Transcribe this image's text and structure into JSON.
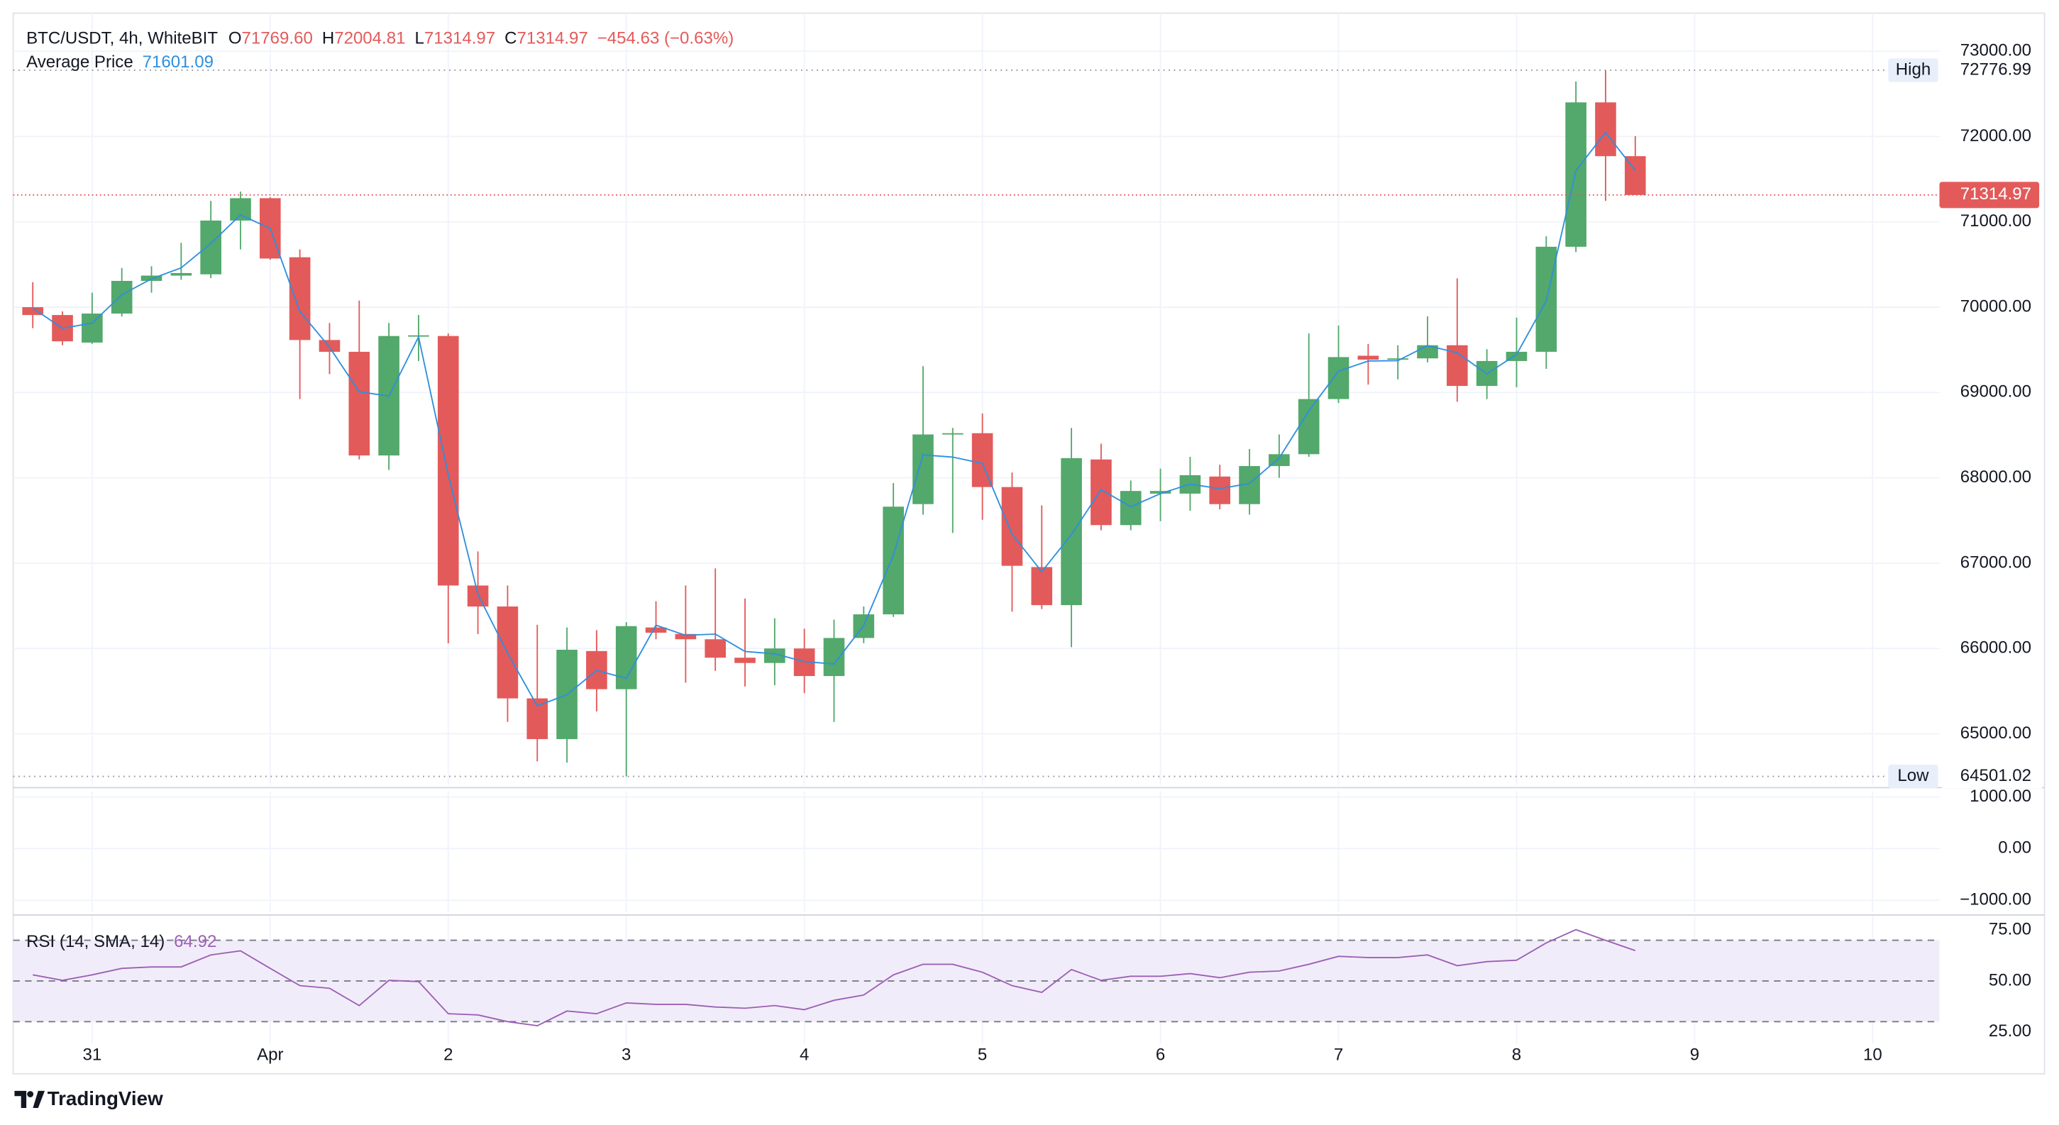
{
  "header": {
    "symbol": "BTC/USDT, 4h, WhiteBIT",
    "ohlc": [
      {
        "key": "O",
        "value": "71769.60"
      },
      {
        "key": "H",
        "value": "72004.81"
      },
      {
        "key": "L",
        "value": "71314.97"
      },
      {
        "key": "C",
        "value": "71314.97"
      }
    ],
    "change": "−454.63 (−0.63%)"
  },
  "brand": "TradingView",
  "chart_data": [
    {
      "type": "candlestick",
      "up_color": "#53a86b",
      "down_color": "#e35a5a",
      "grid": true,
      "open": [
        70000,
        69908,
        69585,
        69925,
        70308,
        70370,
        70385,
        71015,
        71277,
        70585,
        69615,
        69477,
        68262,
        69662,
        69662,
        66738,
        66492,
        65415,
        64938,
        65970,
        65523,
        66246,
        66170,
        66108,
        65892,
        65830,
        66000,
        65677,
        66123,
        66400,
        67692,
        68508,
        68523,
        67892,
        66954,
        66508,
        68215,
        67446,
        67815,
        67815,
        68015,
        67692,
        68138,
        68277,
        68923,
        69431,
        69385,
        69400,
        69554,
        69077,
        69369,
        69477,
        70708,
        72400,
        71769.6
      ],
      "high": [
        70292,
        69950,
        70170,
        70460,
        70480,
        70754,
        71246,
        71354,
        71290,
        70677,
        69815,
        70077,
        69815,
        69908,
        69692,
        67138,
        66738,
        66277,
        66246,
        66215,
        66308,
        66554,
        66738,
        66938,
        66585,
        66354,
        66231,
        66338,
        66492,
        67938,
        69308,
        68585,
        68754,
        68062,
        67677,
        68585,
        68400,
        67969,
        68108,
        68246,
        68154,
        68338,
        68508,
        69692,
        69785,
        69569,
        69554,
        69892,
        70338,
        69508,
        69877,
        70831,
        72646,
        72776.99,
        72004.81
      ],
      "low": [
        69754,
        69554,
        69570,
        69890,
        70170,
        70320,
        70340,
        70677,
        70555,
        68923,
        69215,
        68215,
        68092,
        69369,
        66061,
        66169,
        65139,
        64677,
        64662,
        65262,
        64501.02,
        66108,
        65600,
        65738,
        65554,
        65569,
        65477,
        65139,
        66062,
        66370,
        67569,
        67354,
        67508,
        66431,
        66462,
        66015,
        67385,
        67385,
        67492,
        67615,
        67631,
        67569,
        68000,
        68246,
        68877,
        69092,
        69154,
        69354,
        68892,
        68923,
        69062,
        69277,
        70646,
        71246,
        71314.97
      ],
      "close": [
        69908,
        69600,
        69925,
        70308,
        70370,
        70400,
        71015,
        71277,
        70570,
        69615,
        69477,
        68262,
        69662,
        69670,
        66738,
        66492,
        65415,
        64938,
        65985,
        65523,
        66262,
        66185,
        66108,
        65892,
        65830,
        66000,
        65677,
        66123,
        66400,
        67662,
        68508,
        68523,
        67892,
        66969,
        66508,
        68231,
        67446,
        67846,
        67846,
        68031,
        67692,
        68138,
        68277,
        68923,
        69415,
        69385,
        69400,
        69554,
        69077,
        69369,
        69477,
        70708,
        72400,
        71769.6,
        71314.97
      ],
      "overlays": [
        {
          "name": "Average Price",
          "color": "#2f8fdd",
          "value_label": "71601.09",
          "values": [
            69989,
            69753,
            69813,
            70146,
            70332,
            70461,
            70747,
            71081,
            70923,
            69950,
            69531,
            69008,
            68958,
            69652,
            68038,
            66634,
            65946,
            65327,
            65458,
            65743,
            65649,
            66273,
            66154,
            66169,
            65965,
            65938,
            65846,
            65819,
            66269,
            67093,
            68269,
            68243,
            68169,
            67339,
            66900,
            67335,
            67862,
            67662,
            67815,
            67927,
            67873,
            67934,
            68231,
            68785,
            69250,
            69369,
            69373,
            69550,
            69465,
            69219,
            69446,
            70073,
            71600,
            72048,
            71601.09
          ]
        }
      ],
      "high_marker": {
        "text": "High",
        "value": 72776.99,
        "label": "72776.99"
      },
      "low_marker": {
        "text": "Low",
        "value": 64501.02,
        "label": "64501.02"
      },
      "last_price": {
        "value": 71314.97,
        "label": "71314.97"
      },
      "ylim": [
        64400,
        73446
      ],
      "yticks": [
        {
          "value": 65000,
          "label": "65000.00"
        },
        {
          "value": 66000,
          "label": "66000.00"
        },
        {
          "value": 67000,
          "label": "67000.00"
        },
        {
          "value": 68000,
          "label": "68000.00"
        },
        {
          "value": 69000,
          "label": "69000.00"
        },
        {
          "value": 70000,
          "label": "70000.00"
        },
        {
          "value": 71000,
          "label": "71000.00"
        },
        {
          "value": 72000,
          "label": "72000.00"
        },
        {
          "value": 73000,
          "label": "73000.00"
        }
      ],
      "xlim": [
        -0.66,
        64.25
      ],
      "xticks": [
        {
          "value": 2,
          "label": "31"
        },
        {
          "value": 8,
          "label": "Apr"
        },
        {
          "value": 14,
          "label": "2"
        },
        {
          "value": 20,
          "label": "3"
        },
        {
          "value": 26,
          "label": "4"
        },
        {
          "value": 32,
          "label": "5"
        },
        {
          "value": 38,
          "label": "6"
        },
        {
          "value": 44,
          "label": "7"
        },
        {
          "value": 50,
          "label": "8"
        },
        {
          "value": 56,
          "label": "9"
        },
        {
          "value": 62,
          "label": "10"
        }
      ]
    },
    {
      "type": "blank",
      "grid": true,
      "ylim": [
        -1234,
        1104
      ],
      "yticks": [
        {
          "value": -1000,
          "label": "−1000.00"
        },
        {
          "value": 0,
          "label": "0.00"
        },
        {
          "value": 1000,
          "label": "1000.00"
        }
      ]
    },
    {
      "type": "line",
      "ylim": [
        19.2,
        81.8
      ],
      "yticks": [
        {
          "value": 25,
          "label": "25.00"
        },
        {
          "value": 50,
          "label": "50.00"
        },
        {
          "value": 75,
          "label": "75.00"
        }
      ],
      "band": [
        30,
        70
      ],
      "band_color": "#f1ecfa",
      "hlines": [
        70,
        50,
        30
      ],
      "series": [
        {
          "name": "RSI (14, SMA, 14)",
          "color": "#9c5fb5",
          "value_label": "64.92",
          "values": [
            53.0,
            50.3,
            53.0,
            56.2,
            56.9,
            56.9,
            62.8,
            64.8,
            56.2,
            47.7,
            46.4,
            37.9,
            50.3,
            49.7,
            33.9,
            33.3,
            30.0,
            28.0,
            35.2,
            33.9,
            39.2,
            38.5,
            38.5,
            37.2,
            36.6,
            37.9,
            35.9,
            40.5,
            43.1,
            53.0,
            58.2,
            58.2,
            54.3,
            47.7,
            44.4,
            55.6,
            50.3,
            52.3,
            52.3,
            53.6,
            51.6,
            54.3,
            54.9,
            58.2,
            62.1,
            61.5,
            61.5,
            62.8,
            57.5,
            59.5,
            60.2,
            68.7,
            75.2,
            70.0,
            64.92
          ]
        }
      ]
    }
  ]
}
